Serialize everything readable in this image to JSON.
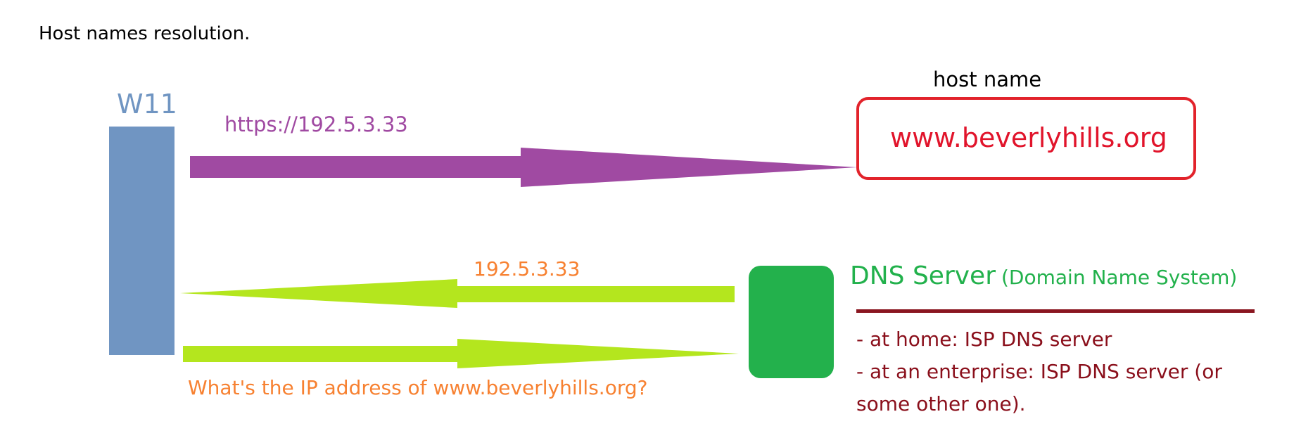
{
  "title": "Host names resolution.",
  "client": {
    "label": "W11",
    "color": "#7095c2"
  },
  "request": {
    "label": "https://192.5.3.33",
    "color": "#a04aa2"
  },
  "host": {
    "heading": "host name",
    "value": "www.beverlyhills.org",
    "border_color": "#e2232b",
    "text_color": "#e1142b"
  },
  "dns": {
    "reply_label": "192.5.3.33",
    "question_label": "What's the IP address of www.beverlyhills.org?",
    "arrow_color": "#b4e61e",
    "label_color": "#f78131",
    "box_color": "#23b14c",
    "title": "DNS Server",
    "subtitle": "(Domain Name System)",
    "title_color": "#22b14c",
    "notes": [
      "- at home:   ISP DNS server",
      "- at an enterprise:  ISP DNS server (or",
      "some other one)."
    ],
    "notes_color": "#8a0f1b"
  }
}
